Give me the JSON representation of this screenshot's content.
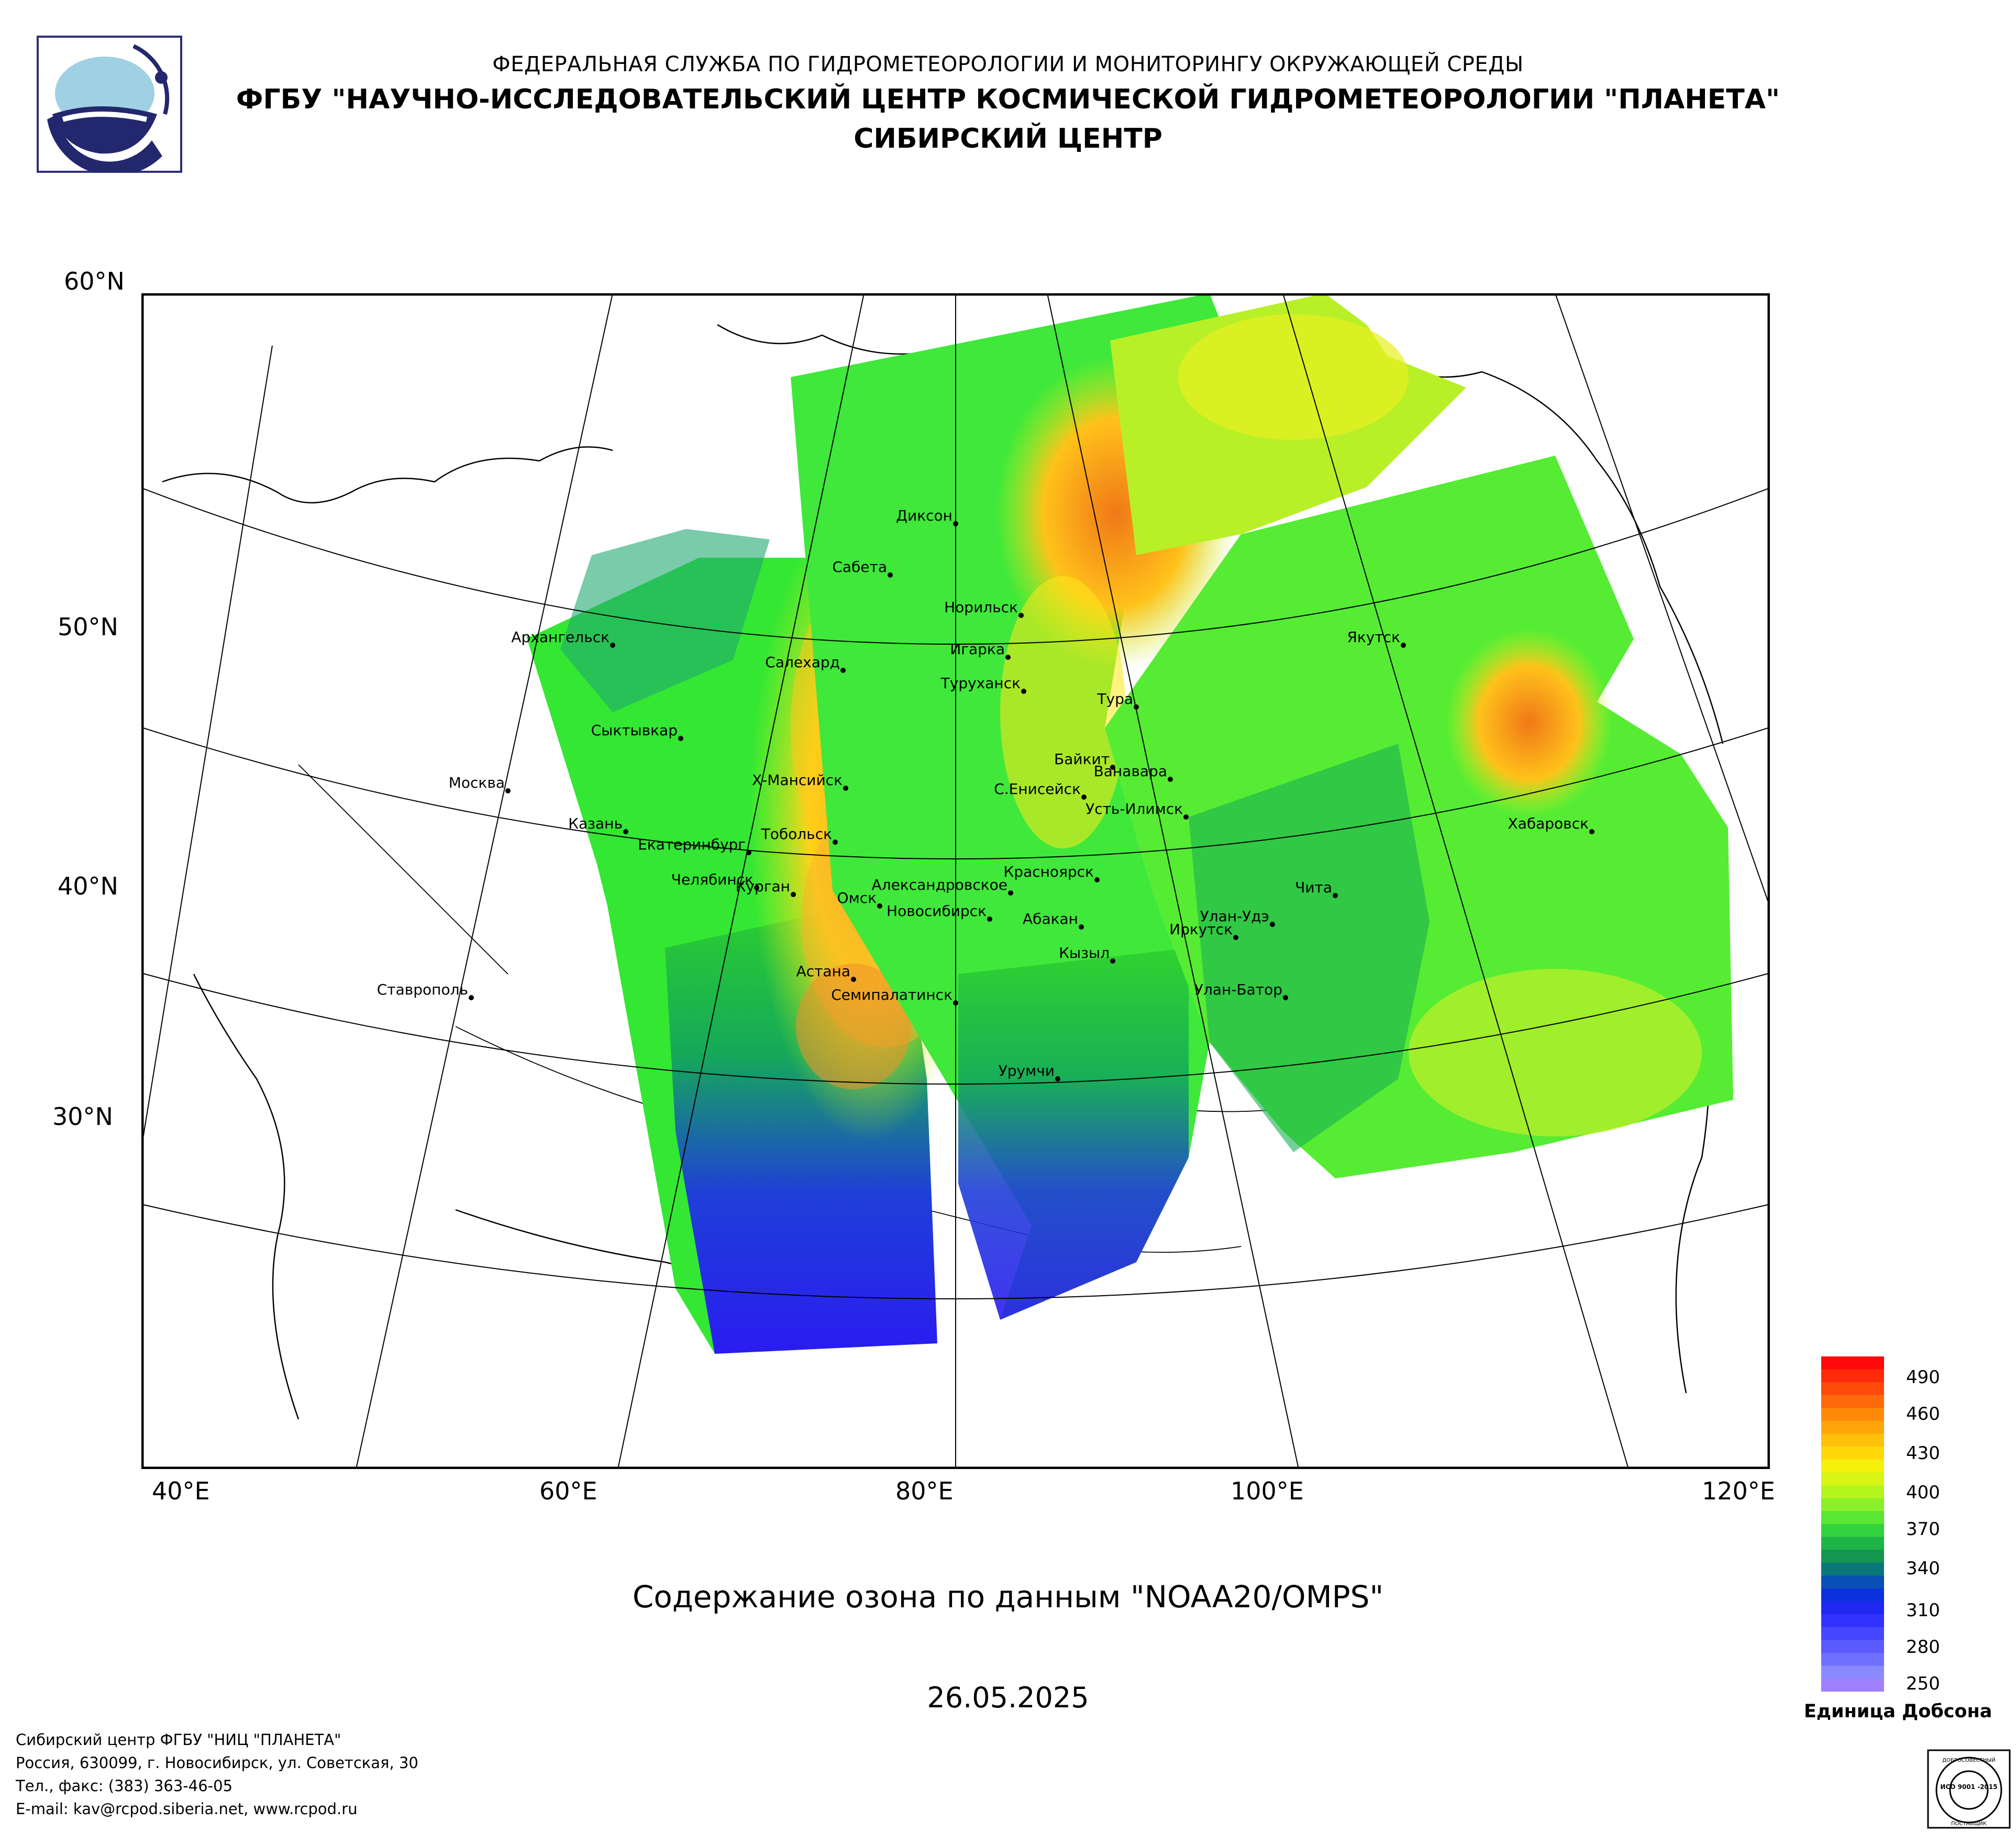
{
  "header": {
    "line1": "ФЕДЕРАЛЬНАЯ СЛУЖБА ПО ГИДРОМЕТЕОРОЛОГИИ И МОНИТОРИНГУ ОКРУЖАЮЩЕЙ СРЕДЫ",
    "line2": "ФГБУ \"НАУЧНО-ИССЛЕДОВАТЕЛЬСКИЙ ЦЕНТР КОСМИЧЕСКОЙ ГИДРОМЕТЕОРОЛОГИИ \"ПЛАНЕТА\"",
    "line3": "СИБИРСКИЙ ЦЕНТР"
  },
  "map": {
    "title": "Содержание озона по данным \"NOAA20/OMPS\"",
    "date": "26.05.2025",
    "lat_labels": [
      "60°N",
      "50°N",
      "40°N",
      "30°N"
    ],
    "lon_labels": [
      "40°E",
      "60°E",
      "80°E",
      "100°E",
      "120°E"
    ],
    "cities": [
      "Диксон",
      "Сабета",
      "Норильск",
      "Игарка",
      "Архангельск",
      "Салехард",
      "Туруханск",
      "Тура",
      "Якутск",
      "Сыктывкар",
      "Байкит",
      "Ванавара",
      "Москва",
      "Х-Мансийск",
      "С.Енисейск",
      "Усть-Илимск",
      "Казань",
      "Тобольск",
      "Екатеринбург",
      "Хабаровск",
      "Челябинск",
      "Курган",
      "Александровское",
      "Красноярск",
      "Омск",
      "Чита",
      "Новосибирск",
      "Абакан",
      "Улан-Удэ",
      "Иркутск",
      "Кызыл",
      "Астана",
      "Ставрополь",
      "Семипалатинск",
      "Улан-Батор",
      "Урумчи"
    ]
  },
  "legend": {
    "ticks": [
      "490",
      "460",
      "430",
      "400",
      "370",
      "340",
      "310",
      "280",
      "250"
    ],
    "unit": "Единица Добсона"
  },
  "footer": {
    "line1": "Сибирский центр ФГБУ \"НИЦ \"ПЛАНЕТА\"",
    "line2": "Россия, 630099, г. Новосибирск, ул. Советская, 30",
    "line3": "Тел., факс: (383) 363-46-05",
    "line4": "E-mail: kav@rcpod.siberia.net, www.rcpod.ru"
  },
  "iso_badge": {
    "top": "ДОБРОСОВЕСТНЫЙ",
    "main": "ИСО 9001 -2015",
    "bottom": "ПОСТАВЩИК"
  },
  "colors": {
    "low_ozone": "#2a2aff",
    "mid_ozone": "#33ff33",
    "high_ozone": "#ffd700",
    "peak_ozone": "#ff6a00",
    "frame": "#000000"
  }
}
